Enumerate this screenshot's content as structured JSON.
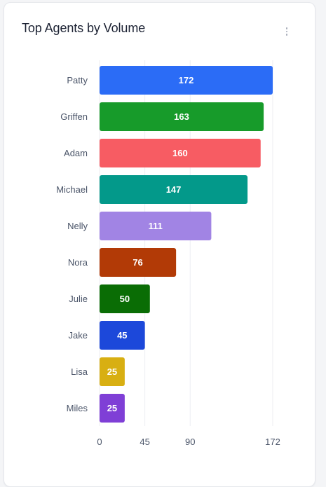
{
  "card": {
    "title": "Top Agents by Volume",
    "menu_icon": "more-vertical-icon"
  },
  "chart_data": {
    "type": "bar",
    "orientation": "horizontal",
    "title": "Top Agents by Volume",
    "xlabel": "",
    "ylabel": "",
    "categories": [
      "Patty",
      "Griffen",
      "Adam",
      "Michael",
      "Nelly",
      "Nora",
      "Julie",
      "Jake",
      "Lisa",
      "Miles"
    ],
    "values": [
      172,
      163,
      160,
      147,
      111,
      76,
      50,
      45,
      25,
      25
    ],
    "colors": [
      "#2b6cf6",
      "#179b2a",
      "#f75c63",
      "#03998a",
      "#a184e4",
      "#b23a06",
      "#0a6d05",
      "#1c48da",
      "#d8af12",
      "#7f3fd6"
    ],
    "x_ticks": [
      0,
      45,
      90,
      172
    ],
    "xlim": [
      0,
      172
    ],
    "grid": true,
    "data_labels": true
  }
}
